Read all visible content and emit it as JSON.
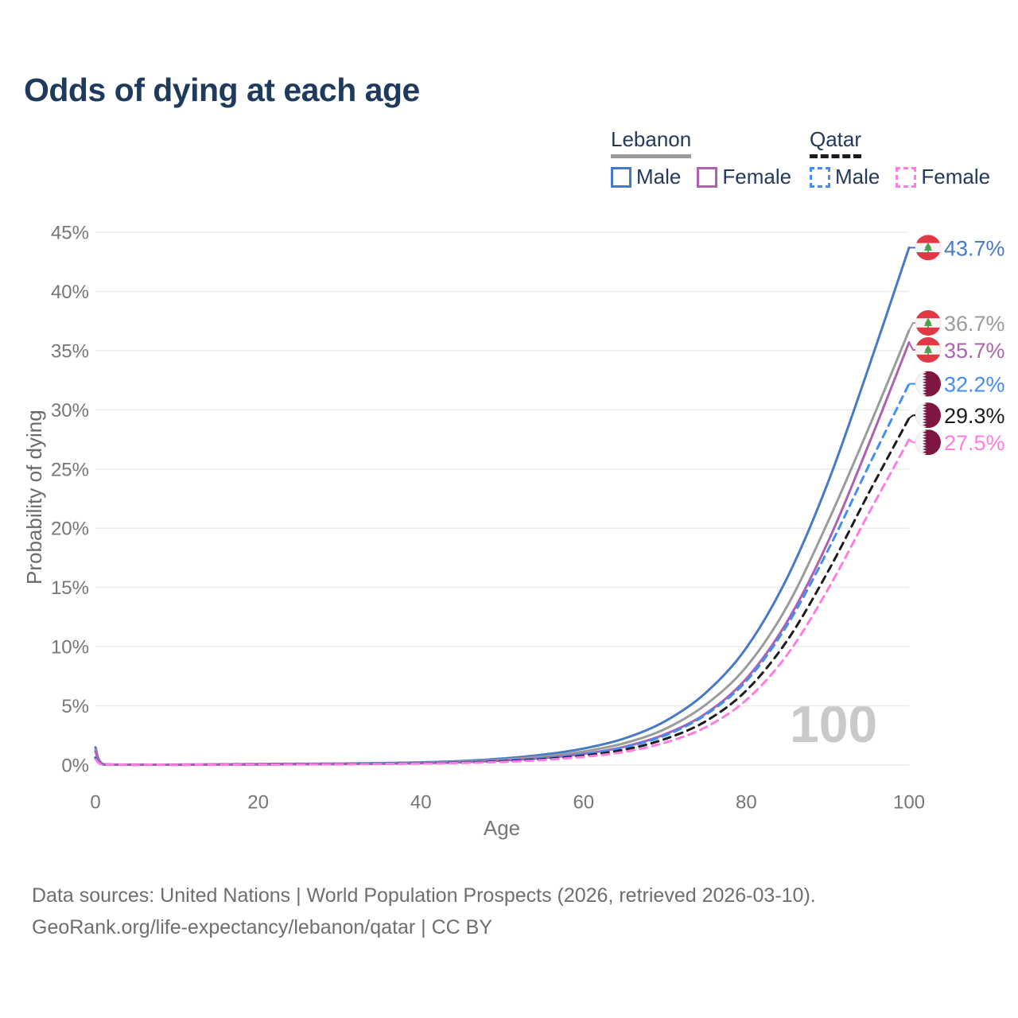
{
  "title": "Odds of dying at each age",
  "watermark_age": "100",
  "source_line1": "Data sources: United Nations | World Population Prospects (2026, retrieved 2026-03-10).",
  "source_line2": "GeoRank.org/life-expectancy/lebanon/qatar | CC BY",
  "legend": {
    "groups": [
      {
        "label": "Lebanon",
        "line_style": "solid",
        "line_color": "#9b9b9b",
        "items": [
          {
            "label": "Male",
            "color": "#4679c8",
            "dashed": false
          },
          {
            "label": "Female",
            "color": "#ae62ae",
            "dashed": false
          }
        ]
      },
      {
        "label": "Qatar",
        "line_style": "dashed",
        "line_color": "#1c1c1c",
        "items": [
          {
            "label": "Male",
            "color": "#418ef5",
            "dashed": true
          },
          {
            "label": "Female",
            "color": "#ff7ce0",
            "dashed": true
          }
        ]
      }
    ]
  },
  "icons": {
    "lebanon_flag": {
      "red": "#e03845",
      "white": "#f5f5f5",
      "cedar_green": "#4ba04b"
    },
    "qatar_flag": {
      "maroon": "#7d1741",
      "white": "#f5f5f5"
    }
  },
  "chart_data": {
    "type": "line",
    "title": "Odds of dying at each age",
    "xlabel": "Age",
    "ylabel": "Probability of dying",
    "x_ticks": [
      0,
      20,
      40,
      60,
      80,
      100
    ],
    "y_ticks_percent": [
      0,
      5,
      10,
      15,
      20,
      25,
      30,
      35,
      40,
      45
    ],
    "xlim": [
      0,
      100
    ],
    "ylim_percent": [
      0,
      45
    ],
    "grid": "horizontal-only",
    "legend_position": "top-right",
    "ages": [
      0,
      1,
      5,
      10,
      15,
      20,
      25,
      30,
      35,
      40,
      45,
      50,
      55,
      60,
      65,
      70,
      75,
      80,
      85,
      90,
      95,
      100
    ],
    "series": [
      {
        "name": "Lebanon Male",
        "country": "lebanon",
        "color": "#4679c8",
        "dashed": false,
        "end_value": 43.7,
        "end_label": "43.7%",
        "values": [
          1.5,
          0.07,
          0.04,
          0.04,
          0.06,
          0.09,
          0.11,
          0.13,
          0.17,
          0.23,
          0.34,
          0.55,
          0.88,
          1.4,
          2.25,
          3.7,
          6.1,
          9.9,
          15.8,
          23.8,
          33.5,
          43.7
        ]
      },
      {
        "name": "Lebanon",
        "country": "lebanon",
        "color": "#9b9b9b",
        "dashed": false,
        "end_value": 36.7,
        "end_label": "36.7%",
        "values": [
          1.3,
          0.06,
          0.035,
          0.035,
          0.05,
          0.07,
          0.09,
          0.11,
          0.14,
          0.19,
          0.28,
          0.45,
          0.72,
          1.15,
          1.85,
          3.05,
          5.1,
          8.3,
          13.4,
          20.5,
          28.4,
          36.7
        ]
      },
      {
        "name": "Lebanon Female",
        "country": "lebanon",
        "color": "#ae62ae",
        "dashed": false,
        "end_value": 35.7,
        "end_label": "35.7%",
        "values": [
          1.15,
          0.055,
          0.03,
          0.03,
          0.04,
          0.05,
          0.07,
          0.09,
          0.12,
          0.16,
          0.24,
          0.38,
          0.6,
          0.95,
          1.55,
          2.6,
          4.35,
          7.3,
          12.1,
          18.8,
          27.0,
          35.7
        ]
      },
      {
        "name": "Qatar Male",
        "country": "qatar",
        "color": "#418ef5",
        "dashed": true,
        "end_value": 32.2,
        "end_label": "32.2%",
        "values": [
          0.65,
          0.05,
          0.03,
          0.03,
          0.05,
          0.07,
          0.09,
          0.1,
          0.13,
          0.17,
          0.24,
          0.37,
          0.58,
          0.92,
          1.5,
          2.5,
          4.25,
          7.1,
          11.8,
          18.1,
          25.2,
          32.2
        ]
      },
      {
        "name": "Qatar",
        "country": "qatar",
        "color": "#1c1c1c",
        "dashed": true,
        "end_value": 29.3,
        "end_label": "29.3%",
        "values": [
          0.55,
          0.045,
          0.025,
          0.025,
          0.04,
          0.06,
          0.075,
          0.09,
          0.11,
          0.15,
          0.21,
          0.32,
          0.5,
          0.8,
          1.3,
          2.2,
          3.7,
          6.3,
          10.5,
          16.3,
          22.9,
          29.3
        ]
      },
      {
        "name": "Qatar Female",
        "country": "qatar",
        "color": "#ff7ce0",
        "dashed": true,
        "end_value": 27.5,
        "end_label": "27.5%",
        "values": [
          0.5,
          0.04,
          0.02,
          0.02,
          0.03,
          0.045,
          0.06,
          0.075,
          0.095,
          0.13,
          0.18,
          0.27,
          0.43,
          0.7,
          1.12,
          1.9,
          3.2,
          5.5,
          9.3,
          14.8,
          21.2,
          27.5
        ]
      }
    ]
  }
}
